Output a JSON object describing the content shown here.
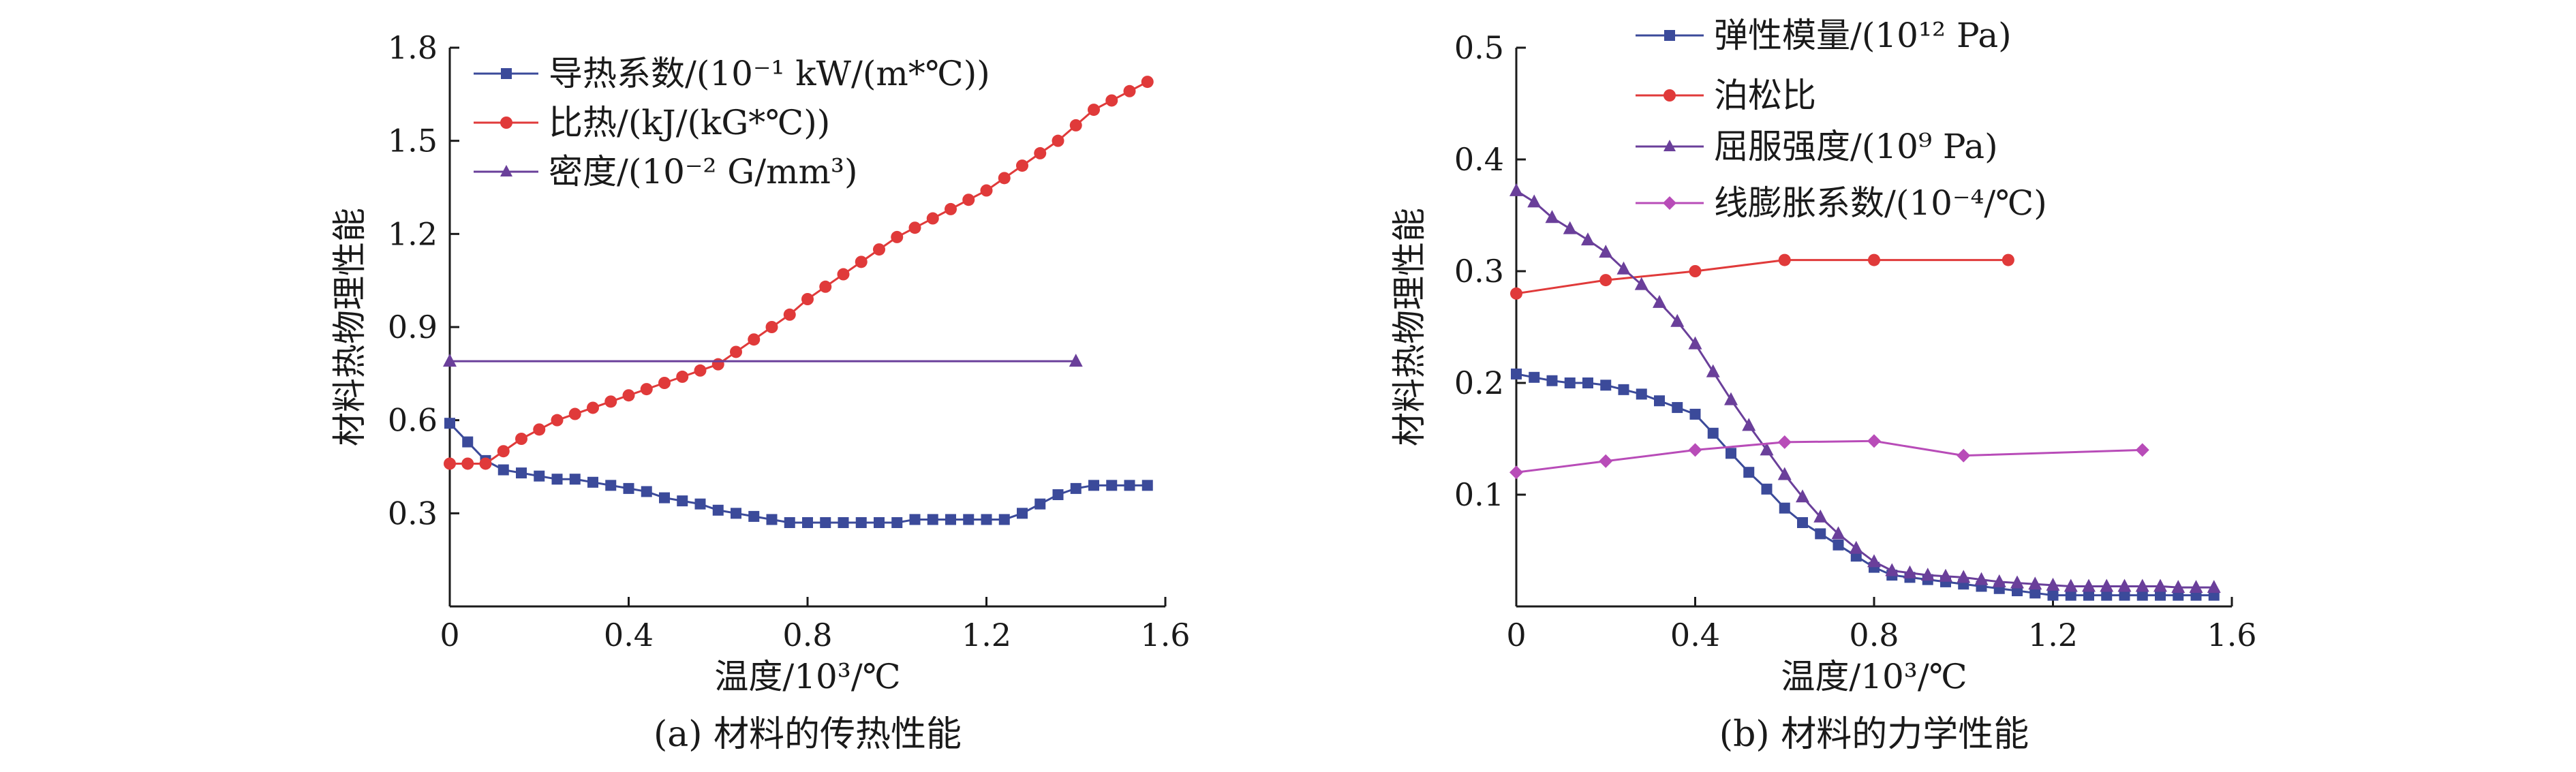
{
  "chart_data": [
    {
      "id": "a",
      "type": "line",
      "caption": "(a) 材料的传热性能",
      "xlabel": "温度/10³/℃",
      "ylabel": "材料热物理性能",
      "xlim": [
        0,
        1.6
      ],
      "ylim": [
        0,
        1.8
      ],
      "xticks": [
        "0",
        "0.4",
        "0.8",
        "1.2",
        "1.6"
      ],
      "yticks": [
        "0.3",
        "0.6",
        "0.9",
        "1.2",
        "1.5",
        "1.8"
      ],
      "legend_position": "top-left",
      "series": [
        {
          "name": "导热系数/(10⁻¹ kW/(m*℃))",
          "color": "#3b4a9a",
          "marker": "square",
          "x": [
            0.0,
            0.04,
            0.08,
            0.12,
            0.16,
            0.2,
            0.24,
            0.28,
            0.32,
            0.36,
            0.4,
            0.44,
            0.48,
            0.52,
            0.56,
            0.6,
            0.64,
            0.68,
            0.72,
            0.76,
            0.8,
            0.84,
            0.88,
            0.92,
            0.96,
            1.0,
            1.04,
            1.08,
            1.12,
            1.16,
            1.2,
            1.24,
            1.28,
            1.32,
            1.36,
            1.4,
            1.44,
            1.48,
            1.52,
            1.56
          ],
          "y": [
            0.59,
            0.53,
            0.47,
            0.44,
            0.43,
            0.42,
            0.41,
            0.41,
            0.4,
            0.39,
            0.38,
            0.37,
            0.35,
            0.34,
            0.33,
            0.31,
            0.3,
            0.29,
            0.28,
            0.27,
            0.27,
            0.27,
            0.27,
            0.27,
            0.27,
            0.27,
            0.28,
            0.28,
            0.28,
            0.28,
            0.28,
            0.28,
            0.3,
            0.33,
            0.36,
            0.38,
            0.39,
            0.39,
            0.39,
            0.39
          ]
        },
        {
          "name": "比热/(kJ/(kG*℃))",
          "color": "#e03a3a",
          "marker": "circle",
          "x": [
            0.0,
            0.04,
            0.08,
            0.12,
            0.16,
            0.2,
            0.24,
            0.28,
            0.32,
            0.36,
            0.4,
            0.44,
            0.48,
            0.52,
            0.56,
            0.6,
            0.64,
            0.68,
            0.72,
            0.76,
            0.8,
            0.84,
            0.88,
            0.92,
            0.96,
            1.0,
            1.04,
            1.08,
            1.12,
            1.16,
            1.2,
            1.24,
            1.28,
            1.32,
            1.36,
            1.4,
            1.44,
            1.48,
            1.52,
            1.56
          ],
          "y": [
            0.46,
            0.46,
            0.46,
            0.5,
            0.54,
            0.57,
            0.6,
            0.62,
            0.64,
            0.66,
            0.68,
            0.7,
            0.72,
            0.74,
            0.76,
            0.78,
            0.82,
            0.86,
            0.9,
            0.94,
            0.99,
            1.03,
            1.07,
            1.11,
            1.15,
            1.19,
            1.22,
            1.25,
            1.28,
            1.31,
            1.34,
            1.38,
            1.42,
            1.46,
            1.5,
            1.55,
            1.6,
            1.63,
            1.66,
            1.69
          ]
        },
        {
          "name": "密度/(10⁻² G/mm³)",
          "color": "#6a3f9a",
          "marker": "triangle",
          "x": [
            0.0,
            1.4
          ],
          "y": [
            0.79,
            0.79
          ]
        }
      ]
    },
    {
      "id": "b",
      "type": "line",
      "caption": "(b) 材料的力学性能",
      "xlabel": "温度/10³/℃",
      "ylabel": "材料热物理性能",
      "xlim": [
        0,
        1.6
      ],
      "ylim": [
        0,
        0.5
      ],
      "xticks": [
        "0",
        "0.4",
        "0.8",
        "1.2",
        "1.6"
      ],
      "yticks": [
        "0.1",
        "0.2",
        "0.3",
        "0.4",
        "0.5"
      ],
      "legend_position": "top-right",
      "series": [
        {
          "name": "弹性模量/(10¹² Pa)",
          "color": "#3b4a9a",
          "marker": "square",
          "x": [
            0.0,
            0.04,
            0.08,
            0.12,
            0.16,
            0.2,
            0.24,
            0.28,
            0.32,
            0.36,
            0.4,
            0.44,
            0.48,
            0.52,
            0.56,
            0.6,
            0.64,
            0.68,
            0.72,
            0.76,
            0.8,
            0.84,
            0.88,
            0.92,
            0.96,
            1.0,
            1.04,
            1.08,
            1.12,
            1.16,
            1.2,
            1.24,
            1.28,
            1.32,
            1.36,
            1.4,
            1.44,
            1.48,
            1.52,
            1.56
          ],
          "y": [
            0.208,
            0.205,
            0.202,
            0.2,
            0.2,
            0.198,
            0.194,
            0.19,
            0.184,
            0.178,
            0.172,
            0.155,
            0.137,
            0.12,
            0.105,
            0.088,
            0.075,
            0.065,
            0.055,
            0.045,
            0.035,
            0.028,
            0.026,
            0.024,
            0.022,
            0.02,
            0.018,
            0.016,
            0.014,
            0.012,
            0.01,
            0.01,
            0.01,
            0.01,
            0.01,
            0.01,
            0.01,
            0.01,
            0.01,
            0.01
          ]
        },
        {
          "name": "泊松比",
          "color": "#e03a3a",
          "marker": "circle",
          "x": [
            0.0,
            0.2,
            0.4,
            0.6,
            0.8,
            1.1
          ],
          "y": [
            0.28,
            0.292,
            0.3,
            0.31,
            0.31,
            0.31
          ]
        },
        {
          "name": "屈服强度/(10⁹ Pa)",
          "color": "#6a3f9a",
          "marker": "triangle",
          "x": [
            0.0,
            0.04,
            0.08,
            0.12,
            0.16,
            0.2,
            0.24,
            0.28,
            0.32,
            0.36,
            0.4,
            0.44,
            0.48,
            0.52,
            0.56,
            0.6,
            0.64,
            0.68,
            0.72,
            0.76,
            0.8,
            0.84,
            0.88,
            0.92,
            0.96,
            1.0,
            1.04,
            1.08,
            1.12,
            1.16,
            1.2,
            1.24,
            1.28,
            1.32,
            1.36,
            1.4,
            1.44,
            1.48,
            1.52,
            1.56
          ],
          "y": [
            0.372,
            0.362,
            0.348,
            0.338,
            0.328,
            0.317,
            0.302,
            0.288,
            0.272,
            0.255,
            0.235,
            0.21,
            0.185,
            0.162,
            0.14,
            0.118,
            0.098,
            0.08,
            0.065,
            0.052,
            0.04,
            0.032,
            0.03,
            0.028,
            0.027,
            0.026,
            0.024,
            0.022,
            0.021,
            0.02,
            0.019,
            0.018,
            0.018,
            0.018,
            0.018,
            0.018,
            0.018,
            0.017,
            0.017,
            0.017
          ]
        },
        {
          "name": "线膨胀系数/(10⁻⁴/℃)",
          "color": "#b84cb8",
          "marker": "diamond",
          "x": [
            0.0,
            0.2,
            0.4,
            0.6,
            0.8,
            1.0,
            1.4
          ],
          "y": [
            0.12,
            0.13,
            0.14,
            0.147,
            0.148,
            0.135,
            0.14
          ]
        }
      ]
    }
  ]
}
